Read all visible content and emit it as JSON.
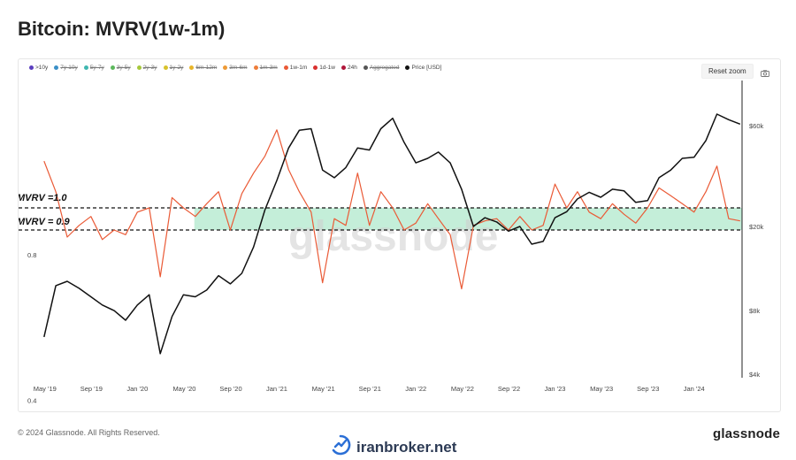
{
  "header": {
    "title": "Bitcoin: MVRV(1w-1m)"
  },
  "toolbar": {
    "reset_zoom": "Reset zoom",
    "camera_icon": "camera-icon"
  },
  "legend": [
    {
      "label": ">10y",
      "color": "#5b3fbf",
      "enabled": true
    },
    {
      "label": "7y-10y",
      "color": "#3a8fc7",
      "enabled": false
    },
    {
      "label": "5y-7y",
      "color": "#3fb7b0",
      "enabled": false
    },
    {
      "label": "3y-5y",
      "color": "#5cb85c",
      "enabled": false
    },
    {
      "label": "2y-3y",
      "color": "#a6c83b",
      "enabled": false
    },
    {
      "label": "1y-2y",
      "color": "#d8c22c",
      "enabled": false
    },
    {
      "label": "6m-12m",
      "color": "#e8b52a",
      "enabled": false
    },
    {
      "label": "3m-6m",
      "color": "#ee9a35",
      "enabled": false
    },
    {
      "label": "1m-3m",
      "color": "#ee7d3a",
      "enabled": false
    },
    {
      "label": "1w-1m",
      "color": "#ea5a36",
      "enabled": true
    },
    {
      "label": "1d-1w",
      "color": "#d9302e",
      "enabled": true
    },
    {
      "label": "24h",
      "color": "#b0163a",
      "enabled": true
    },
    {
      "label": "Aggregated",
      "color": "#555555",
      "enabled": false
    },
    {
      "label": "Price [USD]",
      "color": "#111111",
      "enabled": true
    }
  ],
  "annotations": {
    "mvrv_high": "MVRV =1.0",
    "mvrv_low": "MVRV = 0.9"
  },
  "watermark": "glassnode",
  "footer": {
    "copyright": "© 2024 Glassnode. All Rights Reserved.",
    "brand": "glassnode",
    "site": "iranbroker.net"
  },
  "colors": {
    "mvrv_line": "#ea5a36",
    "price_line": "#111111",
    "band_fill": "#b5ead0"
  },
  "chart_data": {
    "type": "line",
    "x_ticks": [
      "May '19",
      "Sep '19",
      "Jan '20",
      "May '20",
      "Sep '20",
      "Jan '21",
      "May '21",
      "Sep '21",
      "Jan '22",
      "May '22",
      "Sep '22",
      "Jan '23",
      "May '23",
      "Sep '23",
      "Jan '24"
    ],
    "y_left_ticks": [
      "0.8",
      "0.4"
    ],
    "y_right_ticks": [
      "$60k",
      "$20k",
      "$8k",
      "$4k"
    ],
    "y_left_scale": "log",
    "y_right_scale": "log",
    "reference_lines": [
      1.0,
      0.9
    ],
    "series": [
      {
        "name": "1w-1m",
        "axis": "left",
        "x": [
          "2019-05",
          "2019-06",
          "2019-07",
          "2019-08",
          "2019-09",
          "2019-10",
          "2019-11",
          "2019-12",
          "2020-01",
          "2020-02",
          "2020-03",
          "2020-04",
          "2020-05",
          "2020-06",
          "2020-07",
          "2020-08",
          "2020-09",
          "2020-10",
          "2020-11",
          "2020-12",
          "2021-01",
          "2021-02",
          "2021-03",
          "2021-04",
          "2021-05",
          "2021-06",
          "2021-07",
          "2021-08",
          "2021-09",
          "2021-10",
          "2021-11",
          "2021-12",
          "2022-01",
          "2022-02",
          "2022-03",
          "2022-04",
          "2022-05",
          "2022-06",
          "2022-07",
          "2022-08",
          "2022-09",
          "2022-10",
          "2022-11",
          "2022-12",
          "2023-01",
          "2023-02",
          "2023-03",
          "2023-04",
          "2023-05",
          "2023-06",
          "2023-07",
          "2023-08",
          "2023-09",
          "2023-10",
          "2023-11",
          "2023-12",
          "2024-01",
          "2024-02",
          "2024-03",
          "2024-04",
          "2024-05"
        ],
        "values": [
          1.25,
          1.08,
          0.87,
          0.92,
          0.96,
          0.86,
          0.9,
          0.88,
          0.98,
          1.0,
          0.72,
          1.05,
          1.0,
          0.96,
          1.02,
          1.08,
          0.9,
          1.07,
          1.18,
          1.28,
          1.45,
          1.2,
          1.08,
          0.98,
          0.7,
          0.95,
          0.92,
          1.18,
          0.92,
          1.08,
          1.0,
          0.9,
          0.93,
          1.02,
          0.95,
          0.88,
          0.68,
          0.92,
          0.94,
          0.95,
          0.9,
          0.96,
          0.9,
          0.92,
          1.12,
          1.0,
          1.08,
          0.98,
          0.95,
          1.02,
          0.97,
          0.93,
          1.0,
          1.1,
          1.06,
          1.02,
          0.98,
          1.08,
          1.22,
          0.95,
          0.94
        ]
      },
      {
        "name": "Price [USD]",
        "axis": "right",
        "x": [
          "2019-05",
          "2019-06",
          "2019-07",
          "2019-08",
          "2019-09",
          "2019-10",
          "2019-11",
          "2019-12",
          "2020-01",
          "2020-02",
          "2020-03",
          "2020-04",
          "2020-05",
          "2020-06",
          "2020-07",
          "2020-08",
          "2020-09",
          "2020-10",
          "2020-11",
          "2020-12",
          "2021-01",
          "2021-02",
          "2021-03",
          "2021-04",
          "2021-05",
          "2021-06",
          "2021-07",
          "2021-08",
          "2021-09",
          "2021-10",
          "2021-11",
          "2021-12",
          "2022-01",
          "2022-02",
          "2022-03",
          "2022-04",
          "2022-05",
          "2022-06",
          "2022-07",
          "2022-08",
          "2022-09",
          "2022-10",
          "2022-11",
          "2022-12",
          "2023-01",
          "2023-02",
          "2023-03",
          "2023-04",
          "2023-05",
          "2023-06",
          "2023-07",
          "2023-08",
          "2023-09",
          "2023-10",
          "2023-11",
          "2023-12",
          "2024-01",
          "2024-02",
          "2024-03",
          "2024-04",
          "2024-05"
        ],
        "values": [
          6000,
          10500,
          11000,
          10200,
          9300,
          8500,
          8000,
          7200,
          8500,
          9500,
          5000,
          7500,
          9500,
          9300,
          10000,
          11700,
          10700,
          12000,
          16000,
          24000,
          33000,
          47000,
          57000,
          58000,
          37000,
          34000,
          38000,
          47000,
          46000,
          58000,
          65000,
          50000,
          40000,
          42000,
          45000,
          40000,
          30000,
          20000,
          22000,
          21000,
          19000,
          20000,
          16500,
          17000,
          22000,
          23500,
          27000,
          29000,
          27500,
          30000,
          29500,
          26000,
          26500,
          34000,
          37000,
          42000,
          42500,
          51000,
          68000,
          64000,
          61000
        ]
      }
    ]
  }
}
